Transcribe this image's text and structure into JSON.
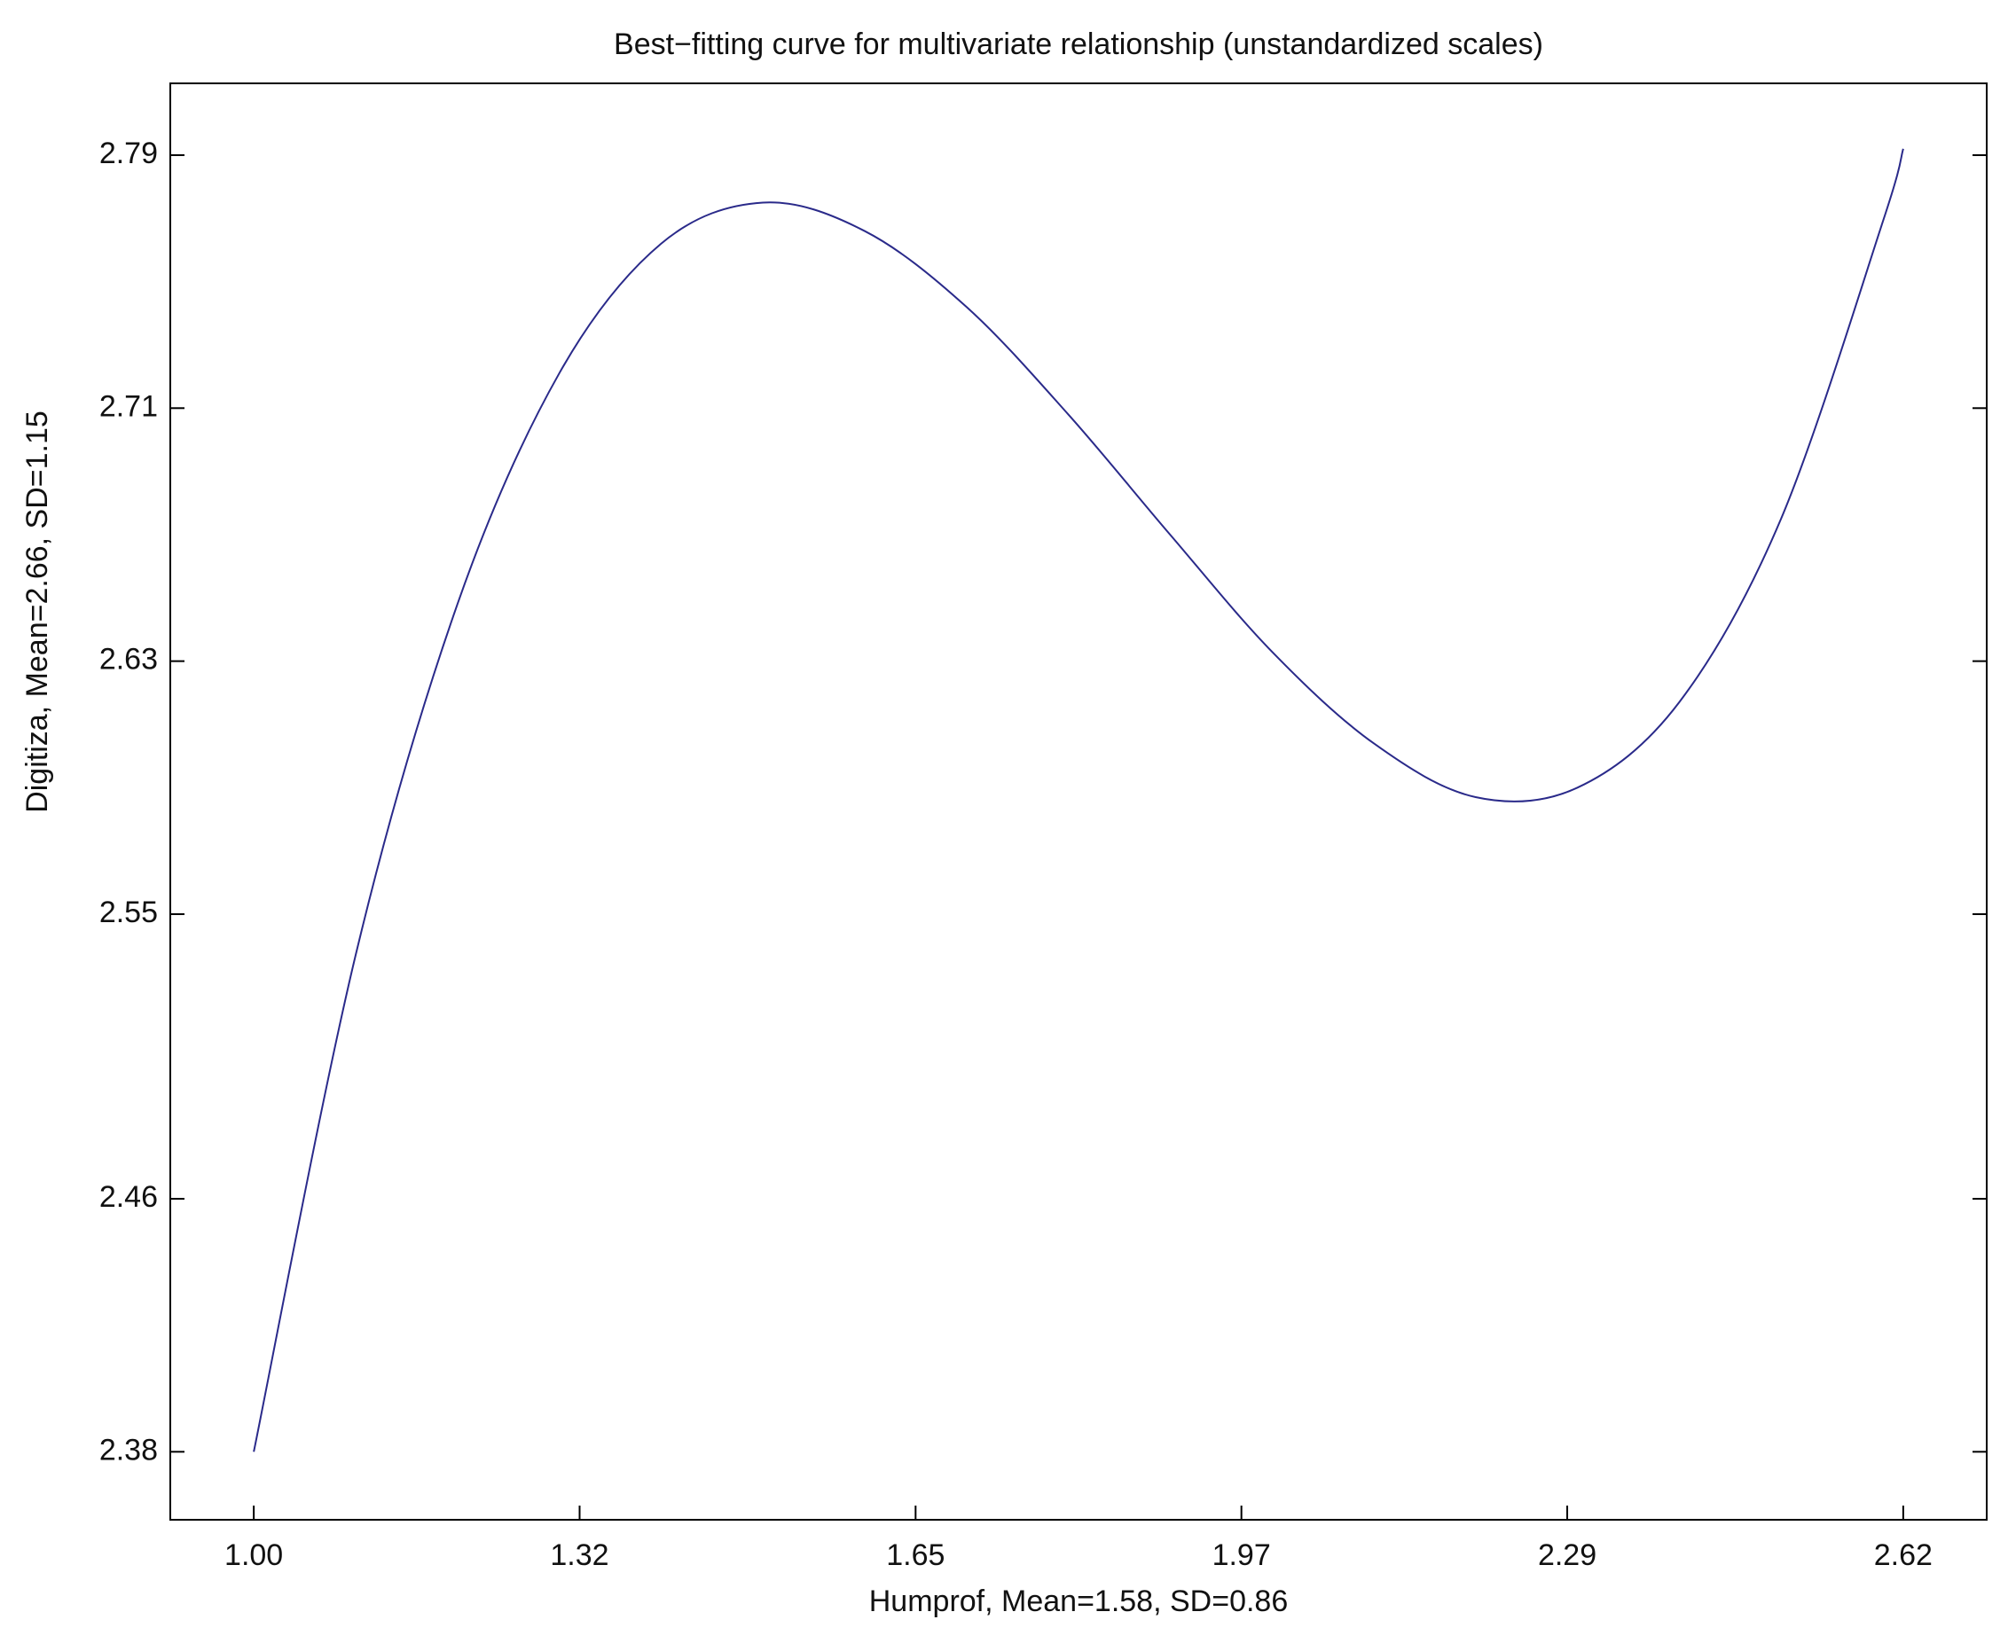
{
  "chart_data": {
    "type": "line",
    "title": "Best−fitting curve for multivariate relationship (unstandardized scales)",
    "x_label": "Humprof, Mean=1.58, SD=0.86",
    "y_label": "Digitiza, Mean=2.66, SD=1.15",
    "x": [
      1.0,
      1.1,
      1.2,
      1.3,
      1.4,
      1.5,
      1.6,
      1.7,
      1.8,
      1.9,
      2.0,
      2.1,
      2.2,
      2.3,
      2.4,
      2.5,
      2.6,
      2.62
    ],
    "series": [
      {
        "color": "#2a2a8a",
        "values": [
          2.38,
          2.537,
          2.648,
          2.721,
          2.762,
          2.775,
          2.766,
          2.742,
          2.708,
          2.67,
          2.633,
          2.604,
          2.587,
          2.59,
          2.617,
          2.675,
          2.769,
          2.792
        ]
      }
    ],
    "xlim": [
      0.918,
      2.702
    ],
    "ylim": [
      2.3585,
      2.8127
    ],
    "xticks": [
      {
        "value": 1.0,
        "label": "1.00"
      },
      1.32,
      1.65,
      1.97,
      2.29,
      2.62
    ],
    "yticks": [
      2.38,
      2.46,
      2.55,
      2.63,
      2.71,
      2.79
    ],
    "grid": false
  }
}
